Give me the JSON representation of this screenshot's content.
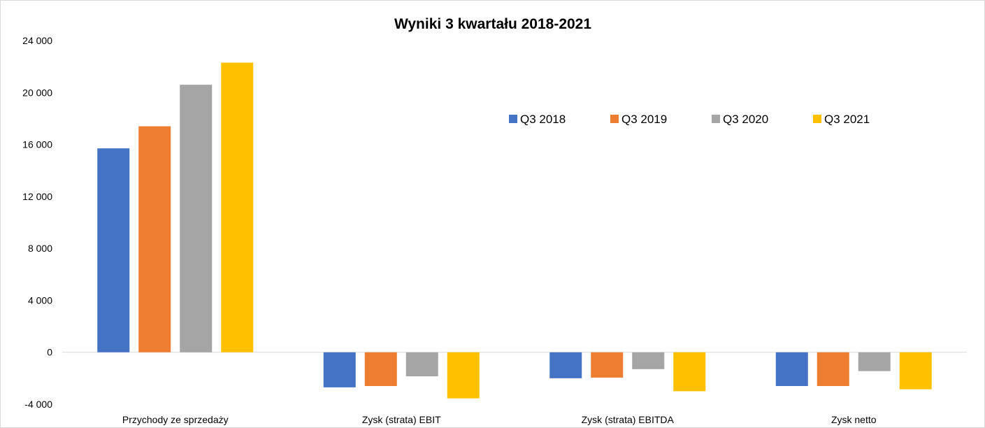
{
  "chart_data": {
    "type": "bar",
    "title": "Wyniki 3 kwartału 2018-2021",
    "xlabel": "",
    "ylabel": "",
    "categories": [
      "Przychody ze sprzedaży",
      "Zysk (strata) EBIT",
      "Zysk (strata) EBITDA",
      "Zysk netto"
    ],
    "series": [
      {
        "name": "Q3 2018",
        "color": "#4472C4",
        "values": [
          15700,
          -2700,
          -2000,
          -2600
        ]
      },
      {
        "name": "Q3 2019",
        "color": "#ED7D31",
        "values": [
          17400,
          -2600,
          -1950,
          -2600
        ]
      },
      {
        "name": "Q3 2020",
        "color": "#A5A5A5",
        "values": [
          20600,
          -1850,
          -1300,
          -1450
        ]
      },
      {
        "name": "Q3 2021",
        "color": "#FFC000",
        "values": [
          22300,
          -3550,
          -3000,
          -2850
        ]
      }
    ],
    "ylim": [
      -4000,
      24000
    ],
    "yticks": [
      -4000,
      0,
      4000,
      8000,
      12000,
      16000,
      20000,
      24000
    ],
    "ytick_labels": [
      "-4 000",
      "0",
      "4 000",
      "8 000",
      "12 000",
      "16 000",
      "20 000",
      "24 000"
    ],
    "grid": false,
    "legend_position": "top-right"
  }
}
